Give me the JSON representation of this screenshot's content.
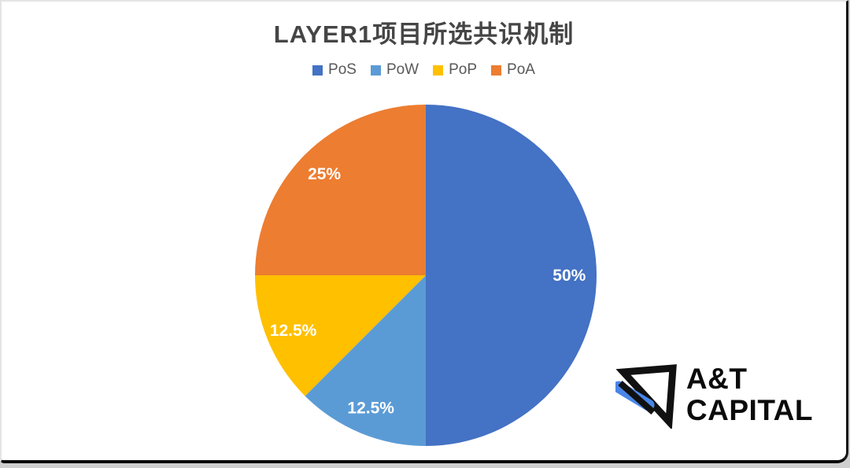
{
  "chart_data": {
    "type": "pie",
    "title": "LAYER1项目所选共识机制",
    "legend_position": "top",
    "direction": "clockwise",
    "start_angle_deg": 0,
    "label_color": "#FFFFFF",
    "background": "#FFFFFF",
    "slices": [
      {
        "name": "PoS",
        "value": 50,
        "label": "50%",
        "color": "#4472C4"
      },
      {
        "name": "PoW",
        "value": 12.5,
        "label": "12.5%",
        "color": "#5B9BD5"
      },
      {
        "name": "PoP",
        "value": 12.5,
        "label": "12.5%",
        "color": "#FFC000"
      },
      {
        "name": "PoA",
        "value": 25,
        "label": "25%",
        "color": "#ED7D31"
      }
    ]
  },
  "logo": {
    "line1": "A&T",
    "line2": "CAPITAL",
    "glyph": "at-capital-triangle-logo",
    "accent_color": "#4a86e8",
    "text_color": "#0b0b0b"
  }
}
